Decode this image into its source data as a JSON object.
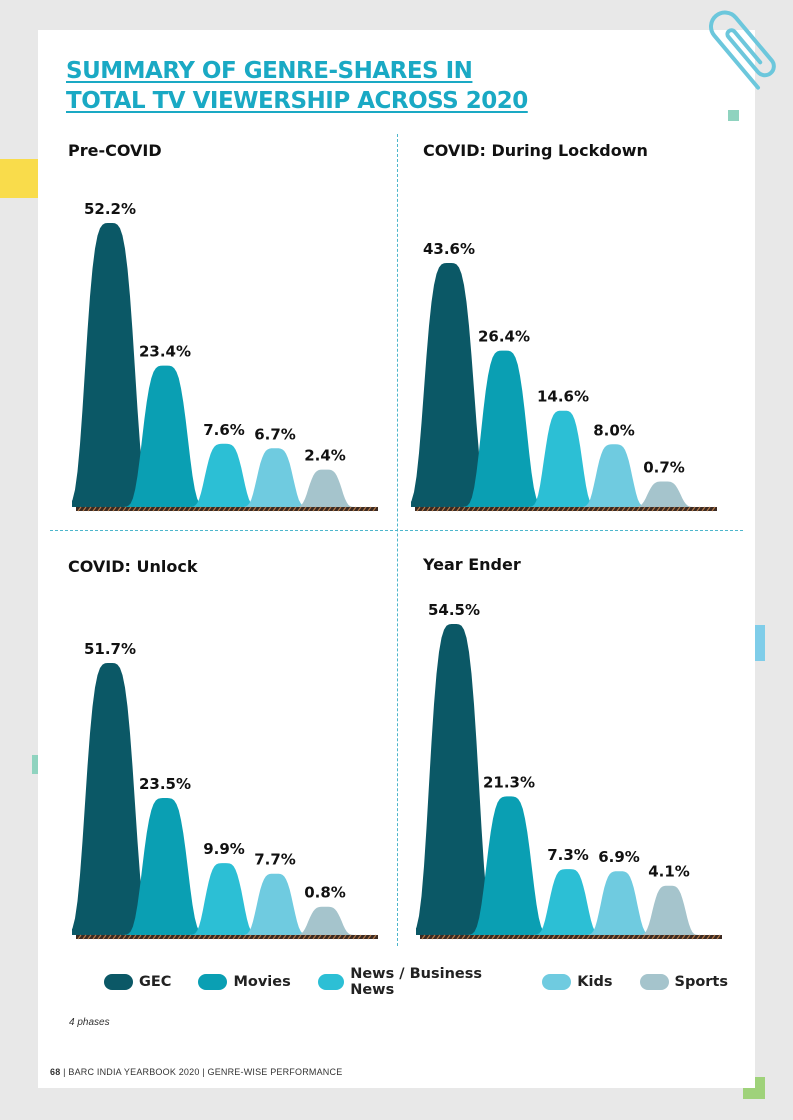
{
  "title": {
    "line1": "SUMMARY OF GENRE-SHARES IN",
    "line2": "TOTAL TV VIEWERSHIP ACROSS 2020"
  },
  "colors": {
    "accent": "#1aa9c4",
    "GEC": "#0b5866",
    "Movies": "#0a9fb3",
    "News / Business News": "#2cbfd5",
    "Kids": "#6fcbe0",
    "Sports": "#a5c4cc"
  },
  "chart_data": [
    {
      "type": "area",
      "title": "Pre-COVID",
      "categories": [
        "GEC",
        "Movies",
        "News / Business News",
        "Kids",
        "Sports"
      ],
      "values": [
        52.2,
        23.4,
        7.6,
        6.7,
        2.4
      ],
      "labels": [
        "52.2%",
        "23.4%",
        "7.6%",
        "6.7%",
        "2.4%"
      ]
    },
    {
      "type": "area",
      "title": "COVID: During Lockdown",
      "categories": [
        "GEC",
        "Movies",
        "News / Business News",
        "Kids",
        "Sports"
      ],
      "values": [
        43.6,
        26.4,
        14.6,
        8.0,
        0.7
      ],
      "labels": [
        "43.6%",
        "26.4%",
        "14.6%",
        "8.0%",
        "0.7%"
      ]
    },
    {
      "type": "area",
      "title": "COVID: Unlock",
      "categories": [
        "GEC",
        "Movies",
        "News / Business News",
        "Kids",
        "Sports"
      ],
      "values": [
        51.7,
        23.5,
        9.9,
        7.7,
        0.8
      ],
      "labels": [
        "51.7%",
        "23.5%",
        "9.9%",
        "7.7%",
        "0.8%"
      ]
    },
    {
      "type": "area",
      "title": "Year Ender",
      "categories": [
        "GEC",
        "Movies",
        "News / Business News",
        "Kids",
        "Sports"
      ],
      "values": [
        54.5,
        21.3,
        7.3,
        6.9,
        4.1
      ],
      "labels": [
        "54.5%",
        "21.3%",
        "7.3%",
        "6.9%",
        "4.1%"
      ]
    }
  ],
  "legend": [
    {
      "label": "GEC",
      "color": "#0b5866"
    },
    {
      "label": "Movies",
      "color": "#0a9fb3"
    },
    {
      "label": "News / Business News",
      "color": "#2cbfd5"
    },
    {
      "label": "Kids",
      "color": "#6fcbe0"
    },
    {
      "label": "Sports",
      "color": "#a5c4cc"
    }
  ],
  "note": "4 phases",
  "footer": {
    "page_number": "68",
    "text": "| BARC INDIA YEARBOOK 2020 | GENRE-WISE PERFORMANCE"
  },
  "decorations": {
    "icon": "paperclip-icon"
  }
}
